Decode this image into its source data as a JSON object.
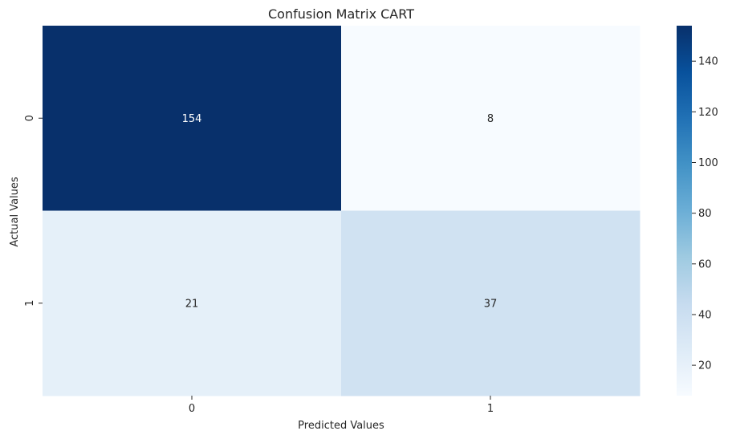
{
  "chart_data": {
    "type": "heatmap",
    "title": "Confusion Matrix CART",
    "xlabel": "Predicted Values",
    "ylabel": "Actual Values",
    "x_categories": [
      "0",
      "1"
    ],
    "y_categories": [
      "0",
      "1"
    ],
    "values": [
      [
        154,
        8
      ],
      [
        21,
        37
      ]
    ],
    "colormap": "Blues",
    "colorbar": {
      "min": 8,
      "max": 154,
      "ticks": [
        20,
        40,
        60,
        80,
        100,
        120,
        140
      ],
      "tick_labels": [
        "20",
        "40",
        "60",
        "80",
        "100",
        "120",
        "140"
      ]
    },
    "grid": false
  }
}
